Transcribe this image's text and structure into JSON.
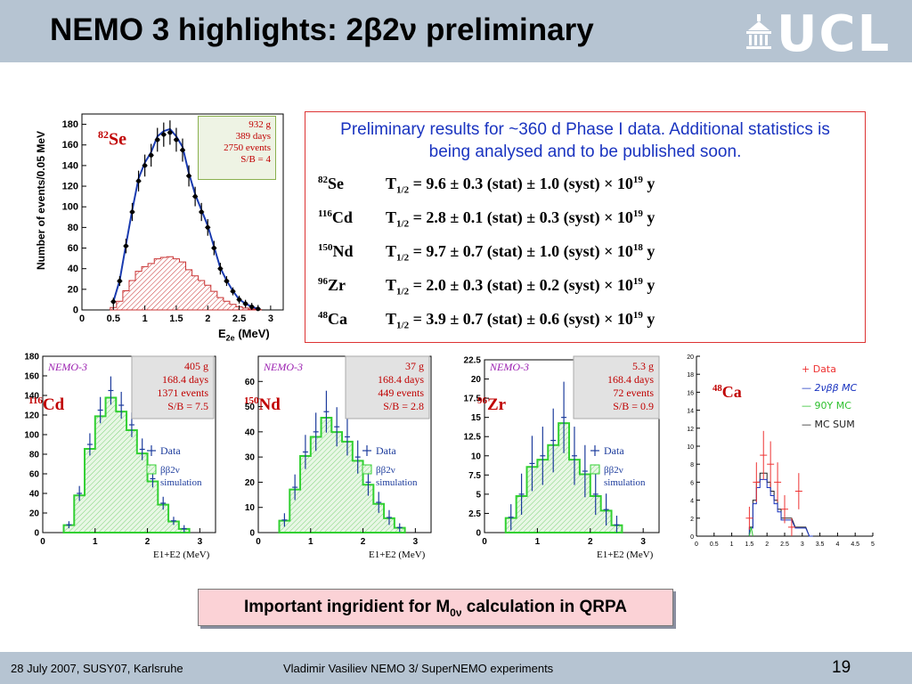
{
  "header": {
    "title": "NEMO 3 highlights: 2β2ν preliminary",
    "logo_text": "UCL"
  },
  "results": {
    "intro": "Preliminary results for ~360 d Phase I data. Additional statistics is being analysed and to be published soon.",
    "rows": [
      {
        "mass": "82",
        "element": "Se",
        "value": "9.6 ± 0.3 (stat) ± 1.0 (syst) × 10",
        "exp": "19",
        "unit": "y"
      },
      {
        "mass": "116",
        "element": "Cd",
        "value": "2.8 ± 0.1 (stat) ± 0.3 (syst) × 10",
        "exp": "19",
        "unit": "y"
      },
      {
        "mass": "150",
        "element": "Nd",
        "value": "9.7 ± 0.7 (stat) ± 1.0 (syst) × 10",
        "exp": "18",
        "unit": "y"
      },
      {
        "mass": "96",
        "element": "Zr",
        "value": "2.0 ± 0.3 (stat) ± 0.2 (syst) × 10",
        "exp": "19",
        "unit": "y"
      },
      {
        "mass": "48",
        "element": "Ca",
        "value": "3.9 ± 0.7 (stat) ± 0.6 (syst) × 10",
        "exp": "19",
        "unit": "y"
      }
    ],
    "half_life_label": "T",
    "half_life_sub": "1/2"
  },
  "se_plot": {
    "isotope_mass": "82",
    "isotope_element": "Se",
    "info": [
      "932 g",
      "389 days",
      "2750  events",
      "S/B = 4"
    ],
    "ylabel": "Number of events/0.05 MeV",
    "xlabel": "E",
    "xlabel_sub": "2e",
    "xlabel_unit": "(MeV)"
  },
  "cd_plot": {
    "nemo": "NEMO-3",
    "isotope_mass": "116",
    "isotope_element": "Cd",
    "info": [
      "405 g",
      "168.4 days",
      "1371  events",
      "S/B = 7.5"
    ],
    "legend_data": "Data",
    "legend_sim": [
      "ββ2ν",
      "simulation"
    ],
    "xlabel": "E1+E2 (MeV)"
  },
  "nd_plot": {
    "nemo": "NEMO-3",
    "isotope_mass": "150",
    "isotope_element": "Nd",
    "info": [
      "37 g",
      "168.4 days",
      "449  events",
      "S/B = 2.8"
    ],
    "legend_data": "Data",
    "legend_sim": [
      "ββ2ν",
      "simulation"
    ],
    "xlabel": "E1+E2 (MeV)"
  },
  "zr_plot": {
    "nemo": "NEMO-3",
    "isotope_mass": "96",
    "isotope_element": "Zr",
    "info": [
      "5.3 g",
      "168.4 days",
      "72  events",
      "S/B = 0.9"
    ],
    "legend_data": "Data",
    "legend_sim": [
      "ββ2ν",
      "simulation"
    ],
    "xlabel": "E1+E2 (MeV)"
  },
  "ca_plot": {
    "isotope_mass": "48",
    "isotope_element": "Ca",
    "legend": [
      "+ Data",
      "— 2νββ MC",
      "— 90Y MC",
      "— MC SUM"
    ]
  },
  "callout": {
    "text_before": "Important ingridient for M",
    "text_sub": "0ν",
    "text_after": " calculation in QRPA"
  },
  "footer": {
    "date": "28 July 2007, SUSY07, Karlsruhe",
    "author": "Vladimir Vasiliev NEMO 3/ SuperNEMO experiments",
    "page": "19"
  },
  "chart_data": [
    {
      "type": "bar",
      "title": "",
      "xlabel": "E2e (MeV)",
      "ylabel": "Number of events/0.05 MeV",
      "xlim": [
        0,
        3.2
      ],
      "ylim": [
        0,
        190
      ],
      "series": [
        {
          "name": "Data",
          "x": [
            0.5,
            0.6,
            0.7,
            0.8,
            0.9,
            1.0,
            1.1,
            1.2,
            1.3,
            1.4,
            1.5,
            1.6,
            1.7,
            1.8,
            1.9,
            2.0,
            2.1,
            2.2,
            2.3,
            2.4,
            2.5,
            2.6,
            2.7,
            2.8
          ],
          "values": [
            8,
            28,
            62,
            95,
            125,
            140,
            150,
            165,
            170,
            172,
            165,
            155,
            130,
            110,
            95,
            80,
            60,
            40,
            28,
            18,
            10,
            6,
            3,
            1
          ]
        }
      ],
      "xticks": [
        "0",
        "0.5",
        "1",
        "1.5",
        "2",
        "2.5",
        "3"
      ],
      "yticks": [
        "0",
        "20",
        "40",
        "60",
        "80",
        "100",
        "120",
        "140",
        "160",
        "180"
      ]
    },
    {
      "type": "bar",
      "title": "",
      "xlabel": "E1+E2 (MeV)",
      "ylabel": "",
      "xlim": [
        0,
        3.3
      ],
      "ylim": [
        0,
        180
      ],
      "series": [
        {
          "name": "Data",
          "x": [
            0.5,
            0.7,
            0.9,
            1.1,
            1.3,
            1.5,
            1.7,
            1.9,
            2.1,
            2.3,
            2.5,
            2.7
          ],
          "values": [
            8,
            40,
            90,
            125,
            145,
            130,
            110,
            85,
            55,
            30,
            12,
            4
          ]
        }
      ],
      "xticks": [
        "0",
        "1",
        "2",
        "3"
      ],
      "yticks": [
        "0",
        "20",
        "40",
        "60",
        "80",
        "100",
        "120",
        "140",
        "160",
        "180"
      ]
    },
    {
      "type": "bar",
      "title": "",
      "xlabel": "E1+E2 (MeV)",
      "ylabel": "",
      "xlim": [
        0,
        3.3
      ],
      "ylim": [
        0,
        70
      ],
      "series": [
        {
          "name": "Data",
          "x": [
            0.5,
            0.7,
            0.9,
            1.1,
            1.3,
            1.5,
            1.7,
            1.9,
            2.1,
            2.3,
            2.5,
            2.7
          ],
          "values": [
            5,
            18,
            32,
            40,
            48,
            42,
            38,
            30,
            20,
            12,
            6,
            2
          ]
        }
      ],
      "xticks": [
        "0",
        "1",
        "2",
        "3"
      ],
      "yticks": [
        "0",
        "10",
        "20",
        "30",
        "40",
        "50",
        "60"
      ]
    },
    {
      "type": "bar",
      "title": "",
      "xlabel": "E1+E2 (MeV)",
      "ylabel": "",
      "xlim": [
        0,
        3.3
      ],
      "ylim": [
        0,
        22.5
      ],
      "series": [
        {
          "name": "Data",
          "x": [
            0.5,
            0.7,
            0.9,
            1.1,
            1.3,
            1.5,
            1.7,
            1.9,
            2.1,
            2.3,
            2.5
          ],
          "values": [
            2,
            5,
            9,
            10,
            12,
            15,
            10,
            8,
            5,
            3,
            1
          ]
        }
      ],
      "xticks": [
        "0",
        "1",
        "2",
        "3"
      ],
      "yticks": [
        "0",
        "2.5",
        "5",
        "7.5",
        "10",
        "12.5",
        "15",
        "17.5",
        "20",
        "22.5"
      ]
    },
    {
      "type": "line",
      "title": "",
      "xlabel": "",
      "ylabel": "",
      "xlim": [
        0,
        5
      ],
      "ylim": [
        0,
        20
      ],
      "series": [
        {
          "name": "Data",
          "x": [
            1.5,
            1.7,
            1.9,
            2.1,
            2.3,
            2.5,
            2.7,
            2.9
          ],
          "values": [
            2,
            6,
            9,
            8,
            6,
            3,
            1,
            5
          ]
        }
      ],
      "xticks": [
        "0",
        "0.5",
        "1",
        "1.5",
        "2",
        "2.5",
        "3",
        "3.5",
        "4",
        "4.5",
        "5"
      ],
      "yticks": [
        "0",
        "2",
        "4",
        "6",
        "8",
        "10",
        "12",
        "14",
        "16",
        "18",
        "20"
      ]
    }
  ]
}
